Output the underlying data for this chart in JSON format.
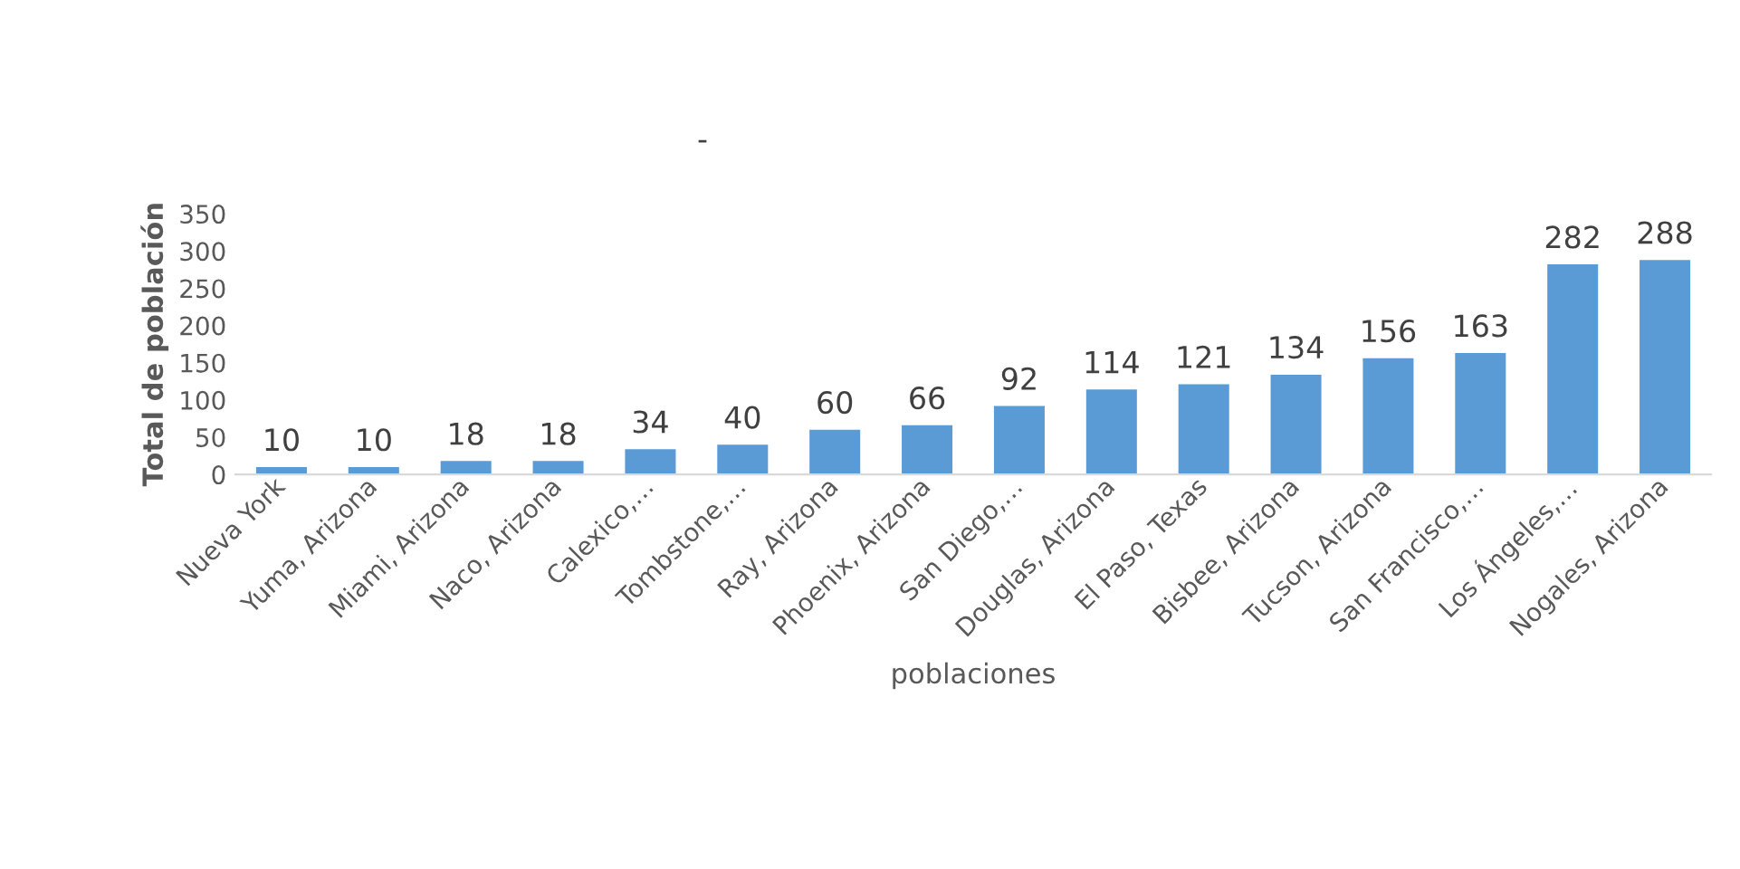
{
  "chart_data": {
    "type": "bar",
    "title": "-",
    "xlabel": "poblaciones",
    "ylabel": "Total de población",
    "categories": [
      "Nueva York",
      "Yuma, Arizona",
      "Miami, Arizona",
      "Naco, Arizona",
      "Calexico,…",
      "Tombstone,…",
      "Ray, Arizona",
      "Phoenix, Arizona",
      "San Diego,…",
      "Douglas, Arizona",
      "El Paso, Texas",
      "Bisbee, Arizona",
      "Tucson, Arizona",
      "San Francisco,…",
      "Los Ángeles,…",
      "Nogales, Arizona"
    ],
    "values": [
      10,
      10,
      18,
      18,
      34,
      40,
      60,
      66,
      92,
      114,
      121,
      134,
      156,
      163,
      282,
      288
    ],
    "color": "#5b9bd5",
    "ylim": [
      0,
      350
    ],
    "yticks": [
      0,
      50,
      100,
      150,
      200,
      250,
      300,
      350
    ],
    "grid": false,
    "data_labels": true
  }
}
